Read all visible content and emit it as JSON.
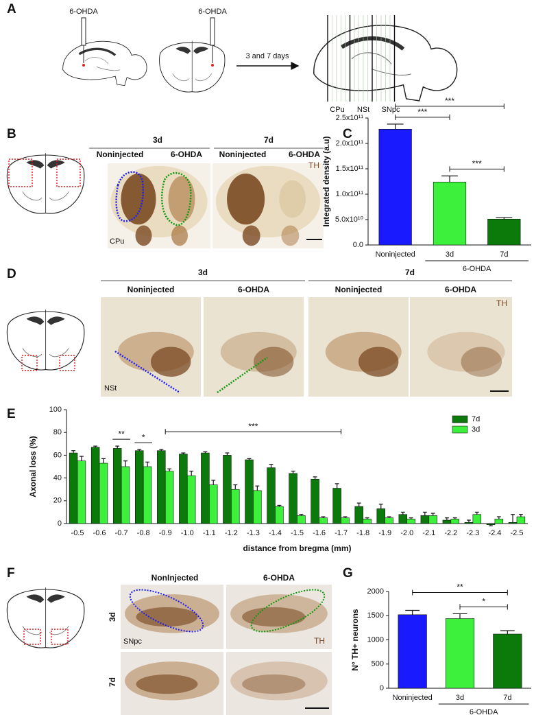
{
  "panel_labels": [
    "A",
    "B",
    "C",
    "D",
    "E",
    "F",
    "G"
  ],
  "panel_a": {
    "injection_labels": [
      "6-OHDA",
      "6-OHDA"
    ],
    "arrow_label": "3 and 7 days",
    "region_labels": [
      "CPu",
      "NSt",
      "SNpc"
    ]
  },
  "panel_b": {
    "time_labels": [
      "3d",
      "7d"
    ],
    "condition_labels": [
      "Noninjected",
      "6-OHDA",
      "Noninjected",
      "6-OHDA"
    ],
    "stain_label": "TH",
    "region_label": "CPu"
  },
  "panel_d": {
    "time_labels": [
      "3d",
      "7d"
    ],
    "condition_labels": [
      "Noninjected",
      "6-OHDA",
      "Noninjected",
      "6-OHDA"
    ],
    "stain_label": "TH",
    "region_label": "NSt"
  },
  "panel_f": {
    "condition_labels": [
      "NonInjected",
      "6-OHDA"
    ],
    "time_labels": [
      "3d",
      "7d"
    ],
    "region_label": "SNpc",
    "stain_label": "TH"
  },
  "chart_data": [
    {
      "type": "bar",
      "y_label": "Integrated density (a.u)",
      "categories": [
        "Noninjected",
        "3d",
        "7d"
      ],
      "values": [
        228000000000,
        124000000000,
        51000000000
      ],
      "errors": [
        10000000000,
        12000000000,
        3000000000
      ],
      "colors": [
        "#1a1aff",
        "#3cf03c",
        "#0b7a0b"
      ],
      "ylim": [
        0,
        250000000000
      ],
      "yticks": [
        {
          "value": 0,
          "label": "0.0"
        },
        {
          "value": 50000000000,
          "label": "5.0x10¹⁰"
        },
        {
          "value": 100000000000,
          "label": "1.0x10¹¹"
        },
        {
          "value": 150000000000,
          "label": "1.5x10¹¹"
        },
        {
          "value": 200000000000,
          "label": "2.0x10¹¹"
        },
        {
          "value": 250000000000,
          "label": "2.5x10¹¹"
        }
      ],
      "group": {
        "label": "6-OHDA",
        "from": "3d",
        "to": "7d"
      },
      "significance": [
        {
          "label": "***",
          "from": "Noninjected",
          "to": "7d"
        },
        {
          "label": "***",
          "from": "Noninjected",
          "to": "3d"
        },
        {
          "label": "***",
          "from": "3d",
          "to": "7d"
        }
      ]
    },
    {
      "type": "bar",
      "y_label": "Axonal loss (%)",
      "x_label": "distance from bregma (mm)",
      "categories": [
        "-0.5",
        "-0.6",
        "-0.7",
        "-0.8",
        "-0.9",
        "-1.0",
        "-1.1",
        "-1.2",
        "-1.3",
        "-1.4",
        "-1.5",
        "-1.6",
        "-1.7",
        "-1.8",
        "-1.9",
        "-2.0",
        "-2.1",
        "-2.2",
        "-2.3",
        "-2.4",
        "-2.5"
      ],
      "series": [
        {
          "name": "7d",
          "color": "#0b7a0b",
          "values": [
            62,
            67,
            66,
            64,
            64,
            61,
            62,
            60,
            56,
            49,
            44,
            39,
            31,
            15,
            13,
            8,
            7,
            3,
            1,
            -1,
            1
          ],
          "errors": [
            2,
            1,
            2,
            1,
            1,
            1,
            1,
            2,
            1,
            3,
            2,
            2,
            4,
            3,
            4,
            2,
            3,
            2,
            2,
            1,
            7
          ]
        },
        {
          "name": "3d",
          "color": "#3cf03c",
          "values": [
            55,
            53,
            50,
            50,
            46,
            42,
            34,
            30,
            29,
            15,
            7,
            5,
            5,
            4,
            5,
            4,
            7,
            4,
            8,
            4,
            6
          ],
          "errors": [
            4,
            4,
            5,
            4,
            2,
            4,
            4,
            4,
            4,
            1,
            1,
            1,
            1,
            1,
            1,
            1,
            2,
            1,
            2,
            2,
            2
          ]
        }
      ],
      "ylim": [
        0,
        100
      ],
      "yticks": [
        0,
        20,
        40,
        60,
        80,
        100
      ],
      "legend": "upper right",
      "significance": [
        {
          "label": "**",
          "from": "-0.7",
          "to": "-0.7"
        },
        {
          "label": "*",
          "from": "-0.8",
          "to": "-0.8"
        },
        {
          "label": "***",
          "from": "-0.9",
          "to": "-1.7"
        }
      ]
    },
    {
      "type": "bar",
      "y_label": "N° TH+ neurons",
      "categories": [
        "Noninjected",
        "3d",
        "7d"
      ],
      "values": [
        1520,
        1440,
        1120
      ],
      "errors": [
        90,
        100,
        70
      ],
      "colors": [
        "#1a1aff",
        "#3cf03c",
        "#0b7a0b"
      ],
      "ylim": [
        0,
        2000
      ],
      "yticks": [
        0,
        500,
        1000,
        1500,
        2000
      ],
      "group": {
        "label": "6-OHDA",
        "from": "3d",
        "to": "7d"
      },
      "significance": [
        {
          "label": "**",
          "from": "Noninjected",
          "to": "7d"
        },
        {
          "label": "*",
          "from": "3d",
          "to": "7d"
        }
      ]
    }
  ]
}
